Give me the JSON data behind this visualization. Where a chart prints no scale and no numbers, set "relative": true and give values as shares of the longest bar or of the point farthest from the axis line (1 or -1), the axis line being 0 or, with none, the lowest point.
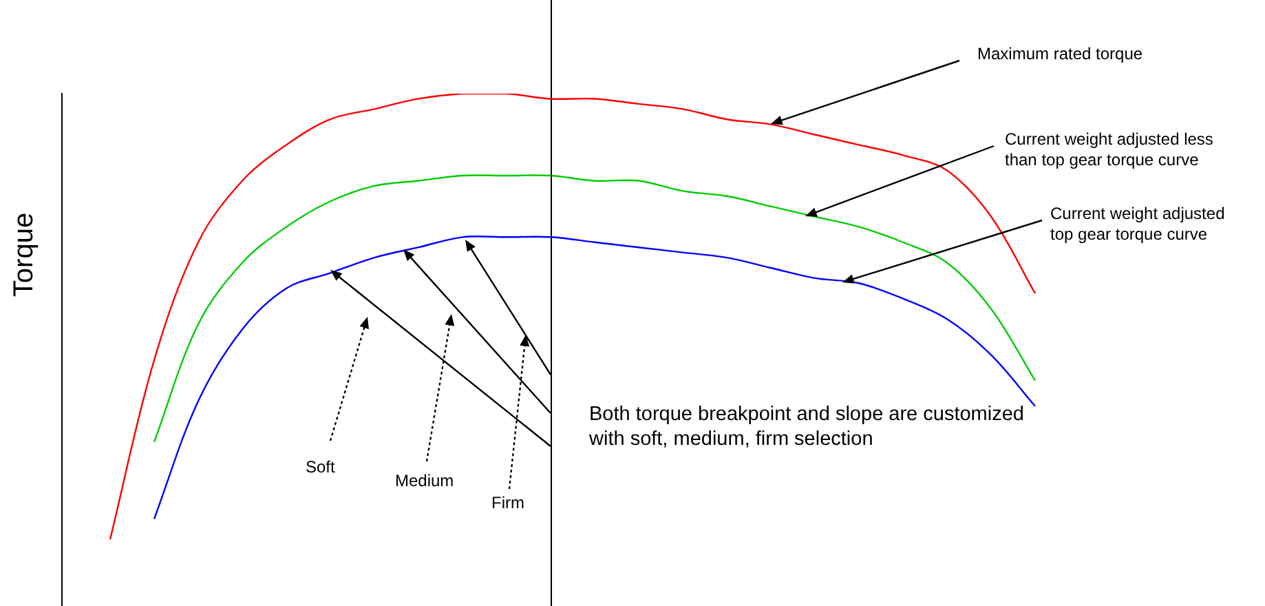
{
  "chart_data": {
    "type": "line",
    "relative": true,
    "ylabel": "Torque",
    "grid": false,
    "legend": false,
    "marker": "none",
    "line_style": "solid",
    "categories": [
      null,
      null,
      null,
      null,
      null,
      null,
      null,
      null,
      null,
      null,
      null,
      null,
      null,
      null,
      null,
      null,
      null,
      null,
      null,
      null,
      null,
      null
    ],
    "series": [
      {
        "color": "#ff0000",
        "values": [
          0.13,
          0.48,
          0.71,
          0.83,
          0.9,
          0.95,
          0.97,
          0.99,
          1.0,
          1.0,
          0.99,
          0.99,
          0.98,
          0.97,
          0.95,
          0.94,
          0.92,
          0.9,
          0.88,
          0.85,
          0.76,
          0.61
        ]
      },
      {
        "color": "#00cc00",
        "values": [
          null,
          0.32,
          0.55,
          0.67,
          0.74,
          0.79,
          0.82,
          0.83,
          0.84,
          0.84,
          0.84,
          0.83,
          0.83,
          0.81,
          0.8,
          0.78,
          0.76,
          0.74,
          0.71,
          0.67,
          0.58,
          0.44
        ]
      },
      {
        "color": "#0000ff",
        "values": [
          null,
          0.17,
          0.4,
          0.54,
          0.62,
          0.65,
          0.68,
          0.7,
          0.72,
          0.72,
          0.72,
          0.71,
          0.7,
          0.69,
          0.68,
          0.66,
          0.64,
          0.63,
          0.6,
          0.56,
          0.49,
          0.39
        ]
      }
    ],
    "annotations": [
      "Maximum rated torque",
      "Current weight adjusted less\nthan top gear torque curve",
      "Current weight adjusted\ntop gear torque curve",
      "Both torque breakpoint and slope are customized\nwith soft, medium, firm selection",
      "Soft",
      "Medium",
      "Firm"
    ]
  }
}
